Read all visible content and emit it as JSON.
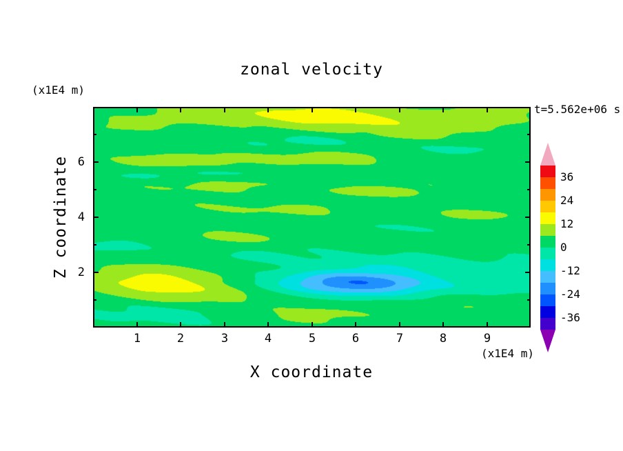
{
  "title": "zonal velocity",
  "timestamp": "t=5.562e+06 s",
  "x_axis": {
    "label": "X coordinate",
    "unit": "(x1E4 m)",
    "ticks": [
      "1",
      "2",
      "3",
      "4",
      "5",
      "6",
      "7",
      "8",
      "9"
    ],
    "range": [
      0,
      10
    ]
  },
  "z_axis": {
    "label": "Z coordinate",
    "unit": "(x1E4 m)",
    "major_ticks": [
      "2",
      "4",
      "6"
    ],
    "minor_ticks": [
      "1",
      "3",
      "5",
      "7"
    ],
    "range": [
      0,
      8
    ]
  },
  "colorbar": {
    "min": -42,
    "max": 42,
    "interval": 6,
    "labels": [
      "36",
      "24",
      "12",
      "0",
      "-12",
      "-24",
      "-36"
    ],
    "label_boundary_index": [
      1,
      3,
      5,
      7,
      9,
      11,
      13
    ],
    "band_colors_low_to_high": [
      "#4400CC",
      "#0000E0",
      "#0055FF",
      "#2090FF",
      "#45BEFF",
      "#00E0E0",
      "#00E6A8",
      "#00D864",
      "#9CE81E",
      "#FAFA00",
      "#FFC800",
      "#FF9600",
      "#FF5000",
      "#F00A14"
    ],
    "under_arrow_color": "#8C00B4",
    "over_arrow_color": "#F2A8BE"
  },
  "chart_data": {
    "type": "heatmap",
    "title": "zonal velocity",
    "xlabel": "X coordinate (x1E4 m)",
    "ylabel": "Z coordinate (x1E4 m)",
    "time_label": "t=5.562e+06 s",
    "xlim": [
      0,
      10
    ],
    "ylim": [
      0,
      8
    ],
    "contour_interval": 6,
    "color_levels": [
      -42,
      -36,
      -30,
      -24,
      -18,
      -12,
      -6,
      0,
      6,
      12,
      18,
      24,
      30,
      36,
      42
    ],
    "field_description": "Filled-contour zonal velocity field; background mostly in 0..6 band (green) with thin horizontal streaks in the 6..12 band (yellow-green) and -12..0 bands (cyan/aqua); bright yellow maximum ~+17 near x=1.5 z=1.6; yellow patch ~+14 near x=5.8 z=7.5; deep blue minimum ~ -27 near x=6.1 z=1.6 ringed by cyan",
    "field": {
      "base": 3,
      "noise_amp": 1.6,
      "features": [
        {
          "x": 5.8,
          "z": 7.55,
          "sx": 1.3,
          "sz": 0.28,
          "amp": 11
        },
        {
          "x": 4.6,
          "z": 7.85,
          "sx": 0.9,
          "sz": 0.2,
          "amp": 6
        },
        {
          "x": 2.6,
          "z": 7.7,
          "sx": 1.1,
          "sz": 0.22,
          "amp": 5
        },
        {
          "x": 1.0,
          "z": 7.35,
          "sx": 0.9,
          "sz": 0.2,
          "amp": 4
        },
        {
          "x": 8.4,
          "z": 7.45,
          "sx": 1.1,
          "sz": 0.28,
          "amp": 5
        },
        {
          "x": 9.3,
          "z": 7.9,
          "sx": 0.8,
          "sz": 0.3,
          "amp": 4
        },
        {
          "x": 7.2,
          "z": 6.95,
          "sx": 0.9,
          "sz": 0.18,
          "amp": 4
        },
        {
          "x": 4.8,
          "z": 6.75,
          "sx": 1.6,
          "sz": 0.18,
          "amp": -4
        },
        {
          "x": 8.6,
          "z": 6.45,
          "sx": 0.9,
          "sz": 0.18,
          "amp": -4
        },
        {
          "x": 2.0,
          "z": 6.05,
          "sx": 1.6,
          "sz": 0.22,
          "amp": 5
        },
        {
          "x": 5.6,
          "z": 6.15,
          "sx": 1.4,
          "sz": 0.2,
          "amp": 5
        },
        {
          "x": 2.4,
          "z": 5.15,
          "sx": 1.3,
          "sz": 0.2,
          "amp": 4
        },
        {
          "x": 6.6,
          "z": 4.95,
          "sx": 1.6,
          "sz": 0.22,
          "amp": 4
        },
        {
          "x": 0.9,
          "z": 5.5,
          "sx": 0.9,
          "sz": 0.15,
          "amp": -4
        },
        {
          "x": 3.5,
          "z": 5.6,
          "sx": 1.2,
          "sz": 0.15,
          "amp": -3.5
        },
        {
          "x": 4.1,
          "z": 4.3,
          "sx": 1.6,
          "sz": 0.2,
          "amp": 4
        },
        {
          "x": 8.8,
          "z": 4.05,
          "sx": 1.0,
          "sz": 0.22,
          "amp": 4
        },
        {
          "x": 3.2,
          "z": 3.25,
          "sx": 1.5,
          "sz": 0.2,
          "amp": 4
        },
        {
          "x": 7.1,
          "z": 3.6,
          "sx": 1.4,
          "sz": 0.2,
          "amp": -3.5
        },
        {
          "x": 0.5,
          "z": 3.0,
          "sx": 0.9,
          "sz": 0.25,
          "amp": -4
        },
        {
          "x": 4.6,
          "z": 2.6,
          "sx": 1.8,
          "sz": 0.25,
          "amp": -3.5
        },
        {
          "x": 1.5,
          "z": 1.62,
          "sx": 1.05,
          "sz": 0.42,
          "amp": 13
        },
        {
          "x": 3.3,
          "z": 1.1,
          "sx": 1.2,
          "sz": 0.3,
          "amp": 6
        },
        {
          "x": 6.1,
          "z": 1.62,
          "sx": 1.15,
          "sz": 0.3,
          "amp": -20
        },
        {
          "x": 6.0,
          "z": 1.55,
          "sx": 2.1,
          "sz": 0.5,
          "amp": -7
        },
        {
          "x": 1.6,
          "z": 0.55,
          "sx": 1.6,
          "sz": 0.35,
          "amp": -6
        },
        {
          "x": 5.0,
          "z": 0.45,
          "sx": 1.4,
          "sz": 0.28,
          "amp": 5
        },
        {
          "x": 8.0,
          "z": 0.85,
          "sx": 1.2,
          "sz": 0.25,
          "amp": 4
        },
        {
          "x": 9.8,
          "z": 1.9,
          "sx": 0.7,
          "sz": 0.7,
          "amp": -5
        },
        {
          "x": 7.4,
          "z": 2.3,
          "sx": 1.0,
          "sz": 0.2,
          "amp": -4
        }
      ]
    }
  }
}
